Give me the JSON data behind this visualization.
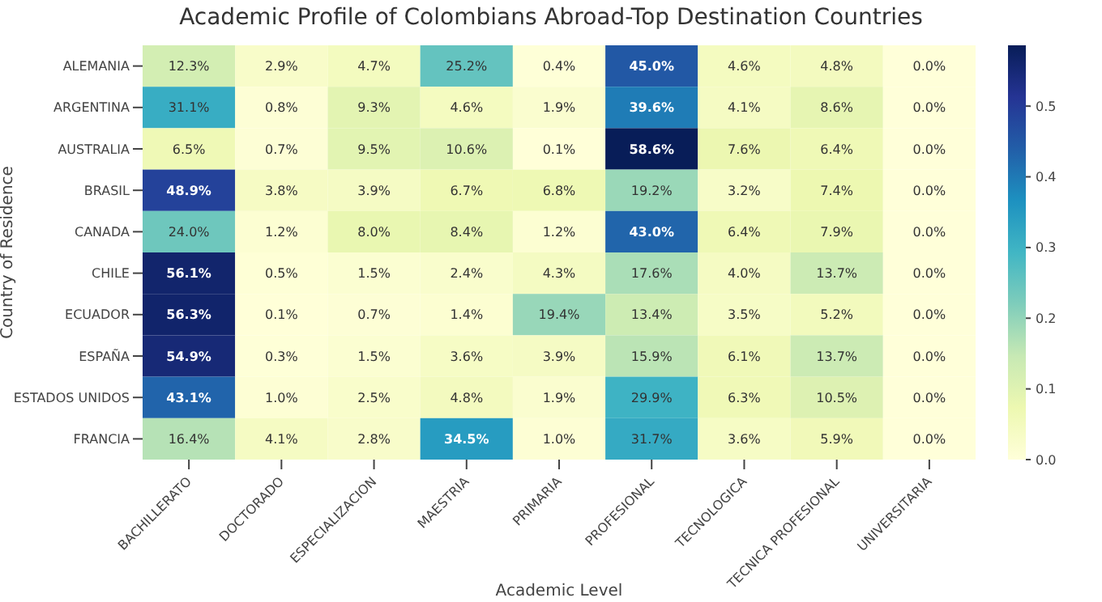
{
  "chart_data": {
    "type": "heatmap",
    "title": "Academic Profile of Colombians Abroad-Top Destination Countries",
    "xlabel": "Academic Level",
    "ylabel": "Country of Residence",
    "categories": [
      "BACHILLERATO",
      "DOCTORADO",
      "ESPECIALIZACION",
      "MAESTRIA",
      "PRIMARIA",
      "PROFESIONAL",
      "TECNOLOGICA",
      "TECNICA PROFESIONAL",
      "UNIVERSITARIA"
    ],
    "y_categories": [
      "ALEMANIA",
      "ARGENTINA",
      "AUSTRALIA",
      "BRASIL",
      "CANADA",
      "CHILE",
      "ECUADOR",
      "ESPAÑA",
      "ESTADOS UNIDOS",
      "FRANCIA"
    ],
    "cells": [
      [
        0.123,
        0.029,
        0.047,
        0.252,
        0.004,
        0.45,
        0.046,
        0.048,
        0.0
      ],
      [
        0.311,
        0.008,
        0.093,
        0.046,
        0.019,
        0.396,
        0.041,
        0.086,
        0.0
      ],
      [
        0.065,
        0.007,
        0.095,
        0.106,
        0.001,
        0.586,
        0.076,
        0.064,
        0.0
      ],
      [
        0.489,
        0.038,
        0.039,
        0.067,
        0.068,
        0.192,
        0.032,
        0.074,
        0.0
      ],
      [
        0.24,
        0.012,
        0.08,
        0.084,
        0.012,
        0.43,
        0.064,
        0.079,
        0.0
      ],
      [
        0.561,
        0.005,
        0.015,
        0.024,
        0.043,
        0.176,
        0.04,
        0.137,
        0.0
      ],
      [
        0.563,
        0.001,
        0.007,
        0.014,
        0.194,
        0.134,
        0.035,
        0.052,
        0.0
      ],
      [
        0.549,
        0.003,
        0.015,
        0.036,
        0.039,
        0.159,
        0.061,
        0.137,
        0.0
      ],
      [
        0.431,
        0.01,
        0.025,
        0.048,
        0.019,
        0.299,
        0.063,
        0.105,
        0.0
      ],
      [
        0.164,
        0.041,
        0.028,
        0.345,
        0.01,
        0.317,
        0.036,
        0.059,
        0.0
      ]
    ],
    "cell_labels": [
      [
        "12.3%",
        "2.9%",
        "4.7%",
        "25.2%",
        "0.4%",
        "45.0%",
        "4.6%",
        "4.8%",
        "0.0%"
      ],
      [
        "31.1%",
        "0.8%",
        "9.3%",
        "4.6%",
        "1.9%",
        "39.6%",
        "4.1%",
        "8.6%",
        "0.0%"
      ],
      [
        "6.5%",
        "0.7%",
        "9.5%",
        "10.6%",
        "0.1%",
        "58.6%",
        "7.6%",
        "6.4%",
        "0.0%"
      ],
      [
        "48.9%",
        "3.8%",
        "3.9%",
        "6.7%",
        "6.8%",
        "19.2%",
        "3.2%",
        "7.4%",
        "0.0%"
      ],
      [
        "24.0%",
        "1.2%",
        "8.0%",
        "8.4%",
        "1.2%",
        "43.0%",
        "6.4%",
        "7.9%",
        "0.0%"
      ],
      [
        "56.1%",
        "0.5%",
        "1.5%",
        "2.4%",
        "4.3%",
        "17.6%",
        "4.0%",
        "13.7%",
        "0.0%"
      ],
      [
        "56.3%",
        "0.1%",
        "0.7%",
        "1.4%",
        "19.4%",
        "13.4%",
        "3.5%",
        "5.2%",
        "0.0%"
      ],
      [
        "54.9%",
        "0.3%",
        "1.5%",
        "3.6%",
        "3.9%",
        "15.9%",
        "6.1%",
        "13.7%",
        "0.0%"
      ],
      [
        "43.1%",
        "1.0%",
        "2.5%",
        "4.8%",
        "1.9%",
        "29.9%",
        "6.3%",
        "10.5%",
        "0.0%"
      ],
      [
        "16.4%",
        "4.1%",
        "2.8%",
        "34.5%",
        "1.0%",
        "31.7%",
        "3.6%",
        "5.9%",
        "0.0%"
      ]
    ],
    "clim": [
      0,
      0.586
    ],
    "cticks": [
      "0.0",
      0.1,
      0.2,
      0.3,
      0.4,
      0.5
    ]
  }
}
